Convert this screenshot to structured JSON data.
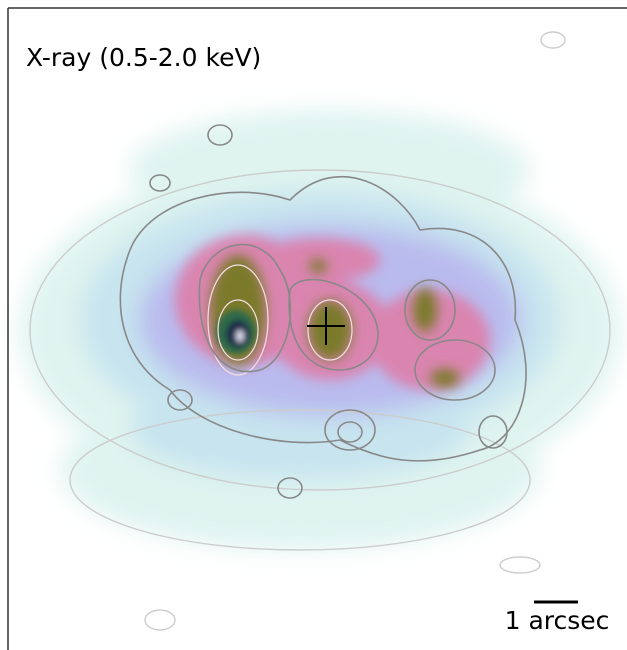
{
  "image": {
    "label": "X-ray (0.5-2.0 keV)",
    "scale_bar": "1 arcsec"
  }
}
